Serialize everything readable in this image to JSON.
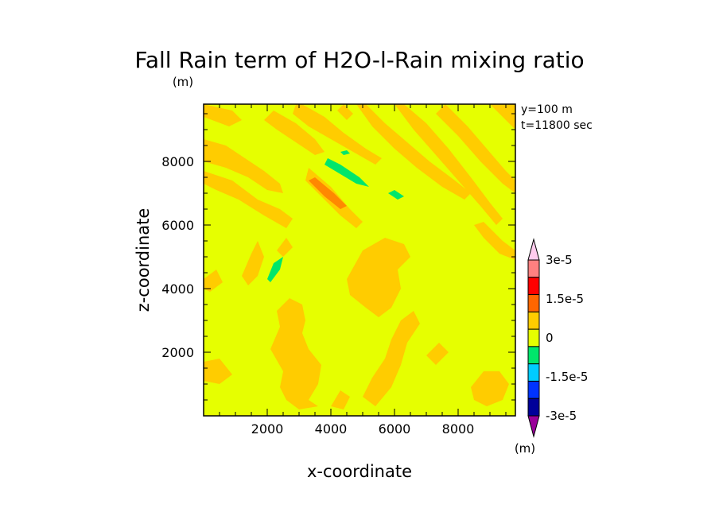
{
  "chart_data": {
    "type": "heatmap",
    "title": "Fall Rain term of H2O-l-Rain mixing ratio",
    "units_label": "(m)",
    "xlabel": "x-coordinate",
    "ylabel": "z-coordinate",
    "xlim": [
      0,
      9800
    ],
    "ylim": [
      0,
      9800
    ],
    "x_ticks": [
      2000,
      4000,
      6000,
      8000
    ],
    "y_ticks": [
      2000,
      4000,
      6000,
      8000
    ],
    "x_tick_labels": [
      "2000",
      "4000",
      "6000",
      "8000"
    ],
    "y_tick_labels": [
      "2000",
      "4000",
      "6000",
      "8000"
    ],
    "info_lines": [
      "y=100 m",
      "t=11800 sec"
    ],
    "colorbar": {
      "levels": [
        -3e-05,
        -2.25e-05,
        -1.5e-05,
        -7.5e-06,
        0,
        7.5e-06,
        1.5e-05,
        2.25e-05,
        3e-05
      ],
      "labels": [
        "-3e-5",
        "-1.5e-5",
        "0",
        "1.5e-5",
        "3e-5"
      ],
      "label_values": [
        -3e-05,
        -1.5e-05,
        0,
        1.5e-05,
        3e-05
      ],
      "colors": [
        "#990099",
        "#000099",
        "#0033ff",
        "#00ccff",
        "#00e66b",
        "#e6ff00",
        "#ffcc00",
        "#ff6600",
        "#ff0000",
        "#ff8080",
        "#ffccee"
      ],
      "units": "(m)"
    },
    "background_value_color": "#e6ff00",
    "regions": [
      {
        "category": "0 to 7.5e-6",
        "color": "#ffcc00",
        "points": [
          [
            0,
            8700
          ],
          [
            700,
            8500
          ],
          [
            1300,
            8100
          ],
          [
            1900,
            7700
          ],
          [
            2400,
            7300
          ],
          [
            2500,
            7000
          ],
          [
            2000,
            7100
          ],
          [
            1400,
            7500
          ],
          [
            700,
            7800
          ],
          [
            0,
            8000
          ]
        ]
      },
      {
        "category": "0 to 7.5e-6",
        "color": "#ffcc00",
        "points": [
          [
            0,
            7700
          ],
          [
            900,
            7400
          ],
          [
            1700,
            6800
          ],
          [
            2400,
            6500
          ],
          [
            2800,
            6200
          ],
          [
            2600,
            5900
          ],
          [
            1900,
            6300
          ],
          [
            1100,
            6800
          ],
          [
            400,
            7100
          ],
          [
            0,
            7300
          ]
        ]
      },
      {
        "category": "0 to 7.5e-6",
        "color": "#ffcc00",
        "points": [
          [
            2200,
            9600
          ],
          [
            2900,
            9200
          ],
          [
            3500,
            8700
          ],
          [
            3800,
            8300
          ],
          [
            3500,
            8200
          ],
          [
            2900,
            8600
          ],
          [
            2300,
            9000
          ],
          [
            1900,
            9300
          ]
        ]
      },
      {
        "category": "0 to 7.5e-6",
        "color": "#ffcc00",
        "points": [
          [
            3100,
            9800
          ],
          [
            3800,
            9400
          ],
          [
            4400,
            8900
          ],
          [
            5100,
            8400
          ],
          [
            5600,
            8100
          ],
          [
            5400,
            7900
          ],
          [
            4700,
            8300
          ],
          [
            4000,
            8700
          ],
          [
            3300,
            9100
          ],
          [
            2800,
            9500
          ],
          [
            2900,
            9800
          ]
        ]
      },
      {
        "category": "0 to 7.5e-6",
        "color": "#ffcc00",
        "points": [
          [
            3300,
            7800
          ],
          [
            4000,
            7200
          ],
          [
            4600,
            6500
          ],
          [
            5000,
            6100
          ],
          [
            4800,
            5900
          ],
          [
            4300,
            6300
          ],
          [
            3700,
            6900
          ],
          [
            3200,
            7400
          ]
        ]
      },
      {
        "category": "0 to 7.5e-6",
        "color": "#ffcc00",
        "points": [
          [
            5100,
            9800
          ],
          [
            5700,
            9200
          ],
          [
            6400,
            8600
          ],
          [
            7100,
            8000
          ],
          [
            7900,
            7400
          ],
          [
            8400,
            7000
          ],
          [
            8200,
            6800
          ],
          [
            7500,
            7200
          ],
          [
            6700,
            7800
          ],
          [
            6000,
            8400
          ],
          [
            5300,
            9100
          ],
          [
            4800,
            9800
          ]
        ]
      },
      {
        "category": "0 to 7.5e-6",
        "color": "#ffcc00",
        "points": [
          [
            6300,
            9800
          ],
          [
            7000,
            9200
          ],
          [
            7700,
            8400
          ],
          [
            8400,
            7500
          ],
          [
            9000,
            6700
          ],
          [
            9400,
            6200
          ],
          [
            9200,
            6000
          ],
          [
            8700,
            6600
          ],
          [
            8000,
            7400
          ],
          [
            7300,
            8200
          ],
          [
            6600,
            9000
          ],
          [
            6000,
            9800
          ]
        ]
      },
      {
        "category": "0 to 7.5e-6",
        "color": "#ffcc00",
        "points": [
          [
            7600,
            9800
          ],
          [
            8300,
            9100
          ],
          [
            8900,
            8400
          ],
          [
            9500,
            7700
          ],
          [
            9800,
            7400
          ],
          [
            9800,
            7000
          ],
          [
            9400,
            7300
          ],
          [
            8700,
            8000
          ],
          [
            8000,
            8800
          ],
          [
            7300,
            9500
          ]
        ]
      },
      {
        "category": "0 to 7.5e-6",
        "color": "#ffcc00",
        "points": [
          [
            9000,
            9800
          ],
          [
            9500,
            9300
          ],
          [
            9800,
            9000
          ],
          [
            9800,
            9800
          ]
        ]
      },
      {
        "category": "0 to 7.5e-6",
        "color": "#ffcc00",
        "points": [
          [
            0,
            9800
          ],
          [
            900,
            9600
          ],
          [
            1200,
            9300
          ],
          [
            800,
            9100
          ],
          [
            0,
            9400
          ]
        ]
      },
      {
        "category": "0 to 7.5e-6",
        "color": "#ffcc00",
        "points": [
          [
            4400,
            9800
          ],
          [
            4700,
            9500
          ],
          [
            4500,
            9300
          ],
          [
            4200,
            9600
          ]
        ]
      },
      {
        "category": "0 to 7.5e-6",
        "color": "#ffcc00",
        "points": [
          [
            8800,
            6100
          ],
          [
            9400,
            5500
          ],
          [
            9800,
            5200
          ],
          [
            9800,
            4900
          ],
          [
            9300,
            5100
          ],
          [
            8800,
            5600
          ],
          [
            8500,
            6000
          ]
        ]
      },
      {
        "category": "0 to 7.5e-6",
        "color": "#ffcc00",
        "points": [
          [
            4500,
            4300
          ],
          [
            5000,
            5200
          ],
          [
            5700,
            5600
          ],
          [
            6300,
            5400
          ],
          [
            6500,
            5000
          ],
          [
            6100,
            4600
          ],
          [
            6200,
            4000
          ],
          [
            5900,
            3400
          ],
          [
            5500,
            3100
          ],
          [
            5100,
            3400
          ],
          [
            4600,
            3800
          ]
        ]
      },
      {
        "category": "0 to 7.5e-6",
        "color": "#ffcc00",
        "points": [
          [
            2100,
            2100
          ],
          [
            2400,
            2800
          ],
          [
            2300,
            3300
          ],
          [
            2700,
            3700
          ],
          [
            3100,
            3500
          ],
          [
            3200,
            3000
          ],
          [
            3100,
            2600
          ],
          [
            3300,
            2100
          ],
          [
            3700,
            1600
          ],
          [
            3600,
            1000
          ],
          [
            3300,
            500
          ],
          [
            3600,
            300
          ],
          [
            3000,
            200
          ],
          [
            2600,
            500
          ],
          [
            2400,
            900
          ],
          [
            2500,
            1400
          ]
        ]
      },
      {
        "category": "0 to 7.5e-6",
        "color": "#ffcc00",
        "points": [
          [
            5400,
            300
          ],
          [
            5900,
            900
          ],
          [
            6200,
            1600
          ],
          [
            6400,
            2300
          ],
          [
            6800,
            2900
          ],
          [
            6600,
            3300
          ],
          [
            6200,
            3000
          ],
          [
            5900,
            2400
          ],
          [
            5700,
            1800
          ],
          [
            5300,
            1200
          ],
          [
            5000,
            600
          ]
        ]
      },
      {
        "category": "0 to 7.5e-6",
        "color": "#ffcc00",
        "points": [
          [
            8400,
            900
          ],
          [
            8800,
            1400
          ],
          [
            9300,
            1400
          ],
          [
            9600,
            1000
          ],
          [
            9400,
            500
          ],
          [
            8900,
            300
          ],
          [
            8500,
            500
          ]
        ]
      },
      {
        "category": "0 to 7.5e-6",
        "color": "#ffcc00",
        "points": [
          [
            0,
            1700
          ],
          [
            500,
            1800
          ],
          [
            900,
            1300
          ],
          [
            500,
            1000
          ],
          [
            0,
            1100
          ]
        ]
      },
      {
        "category": "0 to 7.5e-6",
        "color": "#ffcc00",
        "points": [
          [
            1200,
            4400
          ],
          [
            1500,
            5100
          ],
          [
            1700,
            5500
          ],
          [
            1900,
            5000
          ],
          [
            1700,
            4400
          ],
          [
            1400,
            4100
          ]
        ]
      },
      {
        "category": "0 to 7.5e-6",
        "color": "#ffcc00",
        "points": [
          [
            2300,
            5200
          ],
          [
            2600,
            5600
          ],
          [
            2800,
            5300
          ],
          [
            2500,
            5000
          ]
        ]
      },
      {
        "category": "0 to 7.5e-6",
        "color": "#ffcc00",
        "points": [
          [
            0,
            4300
          ],
          [
            400,
            4600
          ],
          [
            600,
            4200
          ],
          [
            200,
            3900
          ],
          [
            0,
            4000
          ]
        ]
      },
      {
        "category": "0 to 7.5e-6",
        "color": "#ffcc00",
        "points": [
          [
            4000,
            300
          ],
          [
            4300,
            800
          ],
          [
            4600,
            600
          ],
          [
            4400,
            200
          ]
        ]
      },
      {
        "category": "0 to 7.5e-6",
        "color": "#ffcc00",
        "points": [
          [
            7000,
            1900
          ],
          [
            7400,
            2300
          ],
          [
            7700,
            2000
          ],
          [
            7300,
            1600
          ]
        ]
      },
      {
        "category": "7.5e-6 to 1.5e-5",
        "color": "#ff8800",
        "points": [
          [
            3300,
            7400
          ],
          [
            3800,
            6900
          ],
          [
            4300,
            6500
          ],
          [
            4500,
            6600
          ],
          [
            4100,
            7000
          ],
          [
            3500,
            7500
          ]
        ]
      },
      {
        "category": "-7.5e-6 to 0",
        "color": "#00e66b",
        "points": [
          [
            3800,
            7900
          ],
          [
            4300,
            7600
          ],
          [
            4800,
            7300
          ],
          [
            5200,
            7200
          ],
          [
            4900,
            7500
          ],
          [
            4300,
            7900
          ],
          [
            3900,
            8100
          ]
        ]
      },
      {
        "category": "-7.5e-6 to 0",
        "color": "#00e66b",
        "points": [
          [
            5800,
            7000
          ],
          [
            6100,
            6800
          ],
          [
            6300,
            6900
          ],
          [
            6000,
            7100
          ]
        ]
      },
      {
        "category": "-7.5e-6 to 0",
        "color": "#00e66b",
        "points": [
          [
            2000,
            4300
          ],
          [
            2200,
            4800
          ],
          [
            2500,
            5000
          ],
          [
            2400,
            4600
          ],
          [
            2100,
            4200
          ]
        ]
      },
      {
        "category": "-7.5e-6 to 0",
        "color": "#00e66b",
        "points": [
          [
            4300,
            8300
          ],
          [
            4500,
            8350
          ],
          [
            4600,
            8250
          ],
          [
            4400,
            8200
          ]
        ]
      }
    ]
  }
}
